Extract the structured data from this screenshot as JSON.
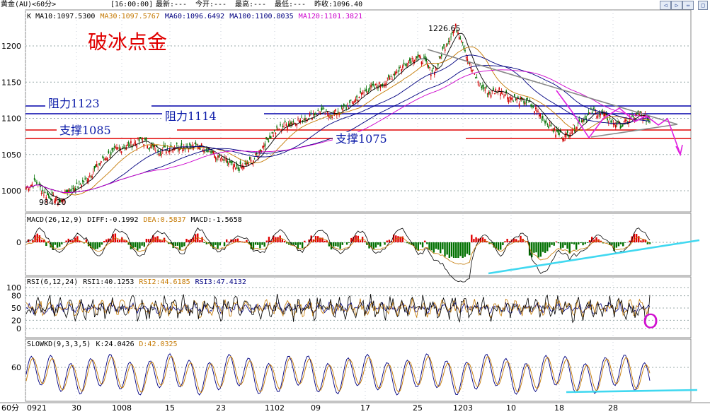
{
  "header": {
    "symbol": "黄金(AU)<60分>",
    "time": "[16:00:00]",
    "latest": "最新:---",
    "open": "今开:---",
    "high": "最高:---",
    "low": "最低:---",
    "prev_close": "昨收:1096.40"
  },
  "title": "破冰点金",
  "ma_legend": [
    {
      "text": "K",
      "color": "#000000"
    },
    {
      "text": "MA10:1097.5300",
      "color": "#000000"
    },
    {
      "text": "MA30:1097.5767",
      "color": "#c47800"
    },
    {
      "text": "MA60:1096.6492",
      "color": "#000080"
    },
    {
      "text": "MA100:1100.8035",
      "color": "#000080"
    },
    {
      "text": "MA120:1101.3821",
      "color": "#cc00cc"
    }
  ],
  "macd_legend": [
    {
      "text": "MACD(26,12,9)",
      "color": "#000000"
    },
    {
      "text": "DIFF:-0.1992",
      "color": "#000000"
    },
    {
      "text": "DEA:0.5837",
      "color": "#c47800"
    },
    {
      "text": "MACD:-1.5658",
      "color": "#000000"
    }
  ],
  "rsi_legend": [
    {
      "text": "RSI(6,12,24)",
      "color": "#000000"
    },
    {
      "text": "RSI1:40.1253",
      "color": "#000000"
    },
    {
      "text": "RSI2:44.6185",
      "color": "#c47800"
    },
    {
      "text": "RSI3:47.4132",
      "color": "#000080"
    }
  ],
  "kd_legend": [
    {
      "text": "SLOWKD(9,3,3,5)",
      "color": "#000000"
    },
    {
      "text": "K:24.0426",
      "color": "#000000"
    },
    {
      "text": "D:42.0325",
      "color": "#c47800"
    }
  ],
  "annotations": {
    "high_label": "1226.65",
    "low_label": "984.20",
    "resistance1": "阻力1123",
    "resistance2": "阻力1114",
    "support1": "支撑1085",
    "support2": "支撑1075",
    "circle_mark": "O"
  },
  "period_label": "60分",
  "chart_data": [
    {
      "type": "candlestick",
      "title": "破冰点金",
      "y_ticks": [
        1000,
        1050,
        1100,
        1150,
        1200
      ],
      "ylim": [
        960,
        1240
      ],
      "x_ticks": [
        "0921",
        "30",
        "1008",
        "15",
        "23",
        "1102",
        "09",
        "17",
        "25",
        "1203",
        "10",
        "18",
        "28"
      ],
      "series": [
        {
          "name": "price",
          "values": [
            [
              0,
              1005
            ],
            [
              3,
              1012
            ],
            [
              6,
              995
            ],
            [
              9,
              990
            ],
            [
              11,
              984.2
            ],
            [
              13,
              1000
            ],
            [
              16,
              1005
            ],
            [
              19,
              1015
            ],
            [
              22,
              1030
            ],
            [
              25,
              1045
            ],
            [
              28,
              1055
            ],
            [
              31,
              1060
            ],
            [
              34,
              1065
            ],
            [
              37,
              1070
            ],
            [
              40,
              1060
            ],
            [
              43,
              1055
            ],
            [
              46,
              1060
            ],
            [
              49,
              1062
            ],
            [
              52,
              1060
            ],
            [
              55,
              1063
            ],
            [
              58,
              1058
            ],
            [
              61,
              1045
            ],
            [
              64,
              1040
            ],
            [
              67,
              1030
            ],
            [
              70,
              1035
            ],
            [
              73,
              1045
            ],
            [
              76,
              1065
            ],
            [
              79,
              1080
            ],
            [
              82,
              1090
            ],
            [
              85,
              1095
            ],
            [
              88,
              1098
            ],
            [
              91,
              1105
            ],
            [
              94,
              1110
            ],
            [
              97,
              1105
            ],
            [
              100,
              1110
            ],
            [
              103,
              1118
            ],
            [
              106,
              1130
            ],
            [
              109,
              1140
            ],
            [
              112,
              1145
            ],
            [
              115,
              1150
            ],
            [
              118,
              1165
            ],
            [
              121,
              1175
            ],
            [
              124,
              1185
            ],
            [
              127,
              1180
            ],
            [
              129,
              1165
            ],
            [
              131,
              1170
            ],
            [
              133,
              1195
            ],
            [
              135,
              1210
            ],
            [
              137,
              1226.65
            ],
            [
              139,
              1210
            ],
            [
              141,
              1180
            ],
            [
              143,
              1160
            ],
            [
              145,
              1145
            ],
            [
              148,
              1135
            ],
            [
              151,
              1140
            ],
            [
              154,
              1130
            ],
            [
              157,
              1125
            ],
            [
              160,
              1122
            ],
            [
              163,
              1110
            ],
            [
              166,
              1095
            ],
            [
              169,
              1080
            ],
            [
              172,
              1075
            ],
            [
              175,
              1088
            ],
            [
              178,
              1100
            ],
            [
              181,
              1110
            ],
            [
              184,
              1105
            ],
            [
              187,
              1095
            ],
            [
              190,
              1090
            ],
            [
              193,
              1100
            ],
            [
              196,
              1105
            ],
            [
              199,
              1096
            ]
          ]
        },
        {
          "name": "MA10",
          "values": []
        }
      ],
      "levels": [
        {
          "label": "阻力1123",
          "value": 1123,
          "color": "#0000aa"
        },
        {
          "label": "阻力1114",
          "value": 1114,
          "color": "#0000aa"
        },
        {
          "label": "支撑1085",
          "value": 1085,
          "color": "#e00000"
        },
        {
          "label": "支撑1075",
          "value": 1075,
          "color": "#e00000"
        }
      ]
    },
    {
      "type": "bar",
      "title": "MACD(26,12,9)",
      "y_ticks": [
        0
      ]
    },
    {
      "type": "line",
      "title": "RSI(6,12,24)",
      "y_ticks": [
        0,
        20,
        50,
        80,
        100
      ]
    },
    {
      "type": "line",
      "title": "SLOWKD(9,3,3,5)",
      "y_ticks": [
        60
      ]
    }
  ]
}
